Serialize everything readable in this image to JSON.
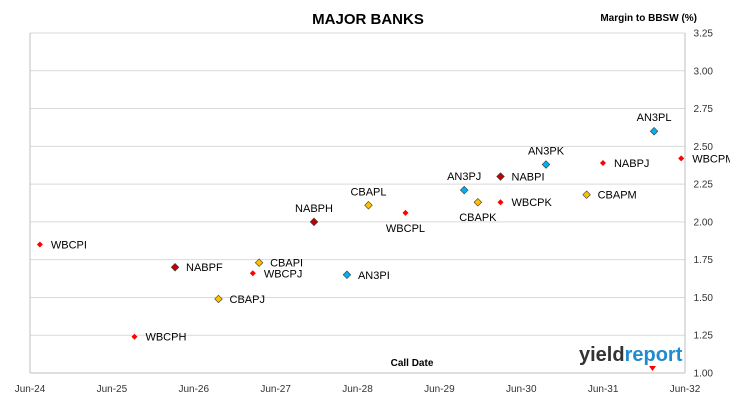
{
  "chart_data": {
    "type": "scatter",
    "title": "MAJOR BANKS",
    "ylabel": "Margin to BBSW (%)",
    "xlabel": "Call Date",
    "x_ticks": [
      "Jun-24",
      "Jun-25",
      "Jun-26",
      "Jun-27",
      "Jun-28",
      "Jun-29",
      "Jun-30",
      "Jun-31",
      "Jun-32"
    ],
    "xlim": [
      "2024-06",
      "2032-06"
    ],
    "ylim": [
      1.0,
      3.25
    ],
    "y_ticks": [
      "1.00",
      "1.25",
      "1.50",
      "1.75",
      "2.00",
      "2.25",
      "2.50",
      "2.75",
      "3.00",
      "3.25"
    ],
    "grid": true,
    "colors": {
      "red": "#ff0000",
      "darkred": "#c00000",
      "gold": "#ffc000",
      "blue": "#00b0f0"
    },
    "points": [
      {
        "label": "WBCPI",
        "date": "2024-07-15",
        "y": 1.85,
        "color": "red",
        "marker": "dot",
        "label_pos": "right"
      },
      {
        "label": "WBCPH",
        "date": "2025-09-10",
        "y": 1.24,
        "color": "red",
        "marker": "dot",
        "label_pos": "right"
      },
      {
        "label": "NABPF",
        "date": "2026-03-10",
        "y": 1.7,
        "color": "darkred",
        "marker": "diamond",
        "label_pos": "right"
      },
      {
        "label": "CBAPJ",
        "date": "2026-09-20",
        "y": 1.49,
        "color": "gold",
        "marker": "diamond",
        "label_pos": "right"
      },
      {
        "label": "WBCPJ",
        "date": "2027-02-20",
        "y": 1.66,
        "color": "red",
        "marker": "dot",
        "label_pos": "right"
      },
      {
        "label": "CBAPI",
        "date": "2027-03-20",
        "y": 1.73,
        "color": "gold",
        "marker": "diamond",
        "label_pos": "right"
      },
      {
        "label": "NABPH",
        "date": "2027-11-20",
        "y": 2.0,
        "color": "darkred",
        "marker": "diamond",
        "label_pos": "above"
      },
      {
        "label": "AN3PI",
        "date": "2028-04-15",
        "y": 1.65,
        "color": "blue",
        "marker": "diamond",
        "label_pos": "right"
      },
      {
        "label": "CBAPL",
        "date": "2028-07-20",
        "y": 2.11,
        "color": "gold",
        "marker": "diamond",
        "label_pos": "above"
      },
      {
        "label": "WBCPL",
        "date": "2029-01-01",
        "y": 2.06,
        "color": "red",
        "marker": "dot",
        "label_pos": "below"
      },
      {
        "label": "AN3PJ",
        "date": "2029-09-20",
        "y": 2.21,
        "color": "blue",
        "marker": "diamond",
        "label_pos": "above"
      },
      {
        "label": "CBAPK",
        "date": "2029-11-20",
        "y": 2.13,
        "color": "gold",
        "marker": "diamond",
        "label_pos": "below"
      },
      {
        "label": "NABPI",
        "date": "2030-03-01",
        "y": 2.3,
        "color": "darkred",
        "marker": "diamond",
        "label_pos": "right"
      },
      {
        "label": "WBCPK",
        "date": "2030-03-01",
        "y": 2.13,
        "color": "red",
        "marker": "dot",
        "label_pos": "right"
      },
      {
        "label": "AN3PK",
        "date": "2030-09-20",
        "y": 2.38,
        "color": "blue",
        "marker": "diamond",
        "label_pos": "above"
      },
      {
        "label": "CBAPM",
        "date": "2031-03-20",
        "y": 2.18,
        "color": "gold",
        "marker": "diamond",
        "label_pos": "right"
      },
      {
        "label": "NABPJ",
        "date": "2031-06-01",
        "y": 2.39,
        "color": "red",
        "marker": "dot",
        "label_pos": "right"
      },
      {
        "label": "AN3PL",
        "date": "2032-01-15",
        "y": 2.6,
        "color": "blue",
        "marker": "diamond",
        "label_pos": "above"
      },
      {
        "label": "WBCPM",
        "date": "2032-05-15",
        "y": 2.42,
        "color": "red",
        "marker": "dot",
        "label_pos": "right"
      }
    ]
  },
  "logo": {
    "prefix": "yield",
    "suffix": "report"
  }
}
